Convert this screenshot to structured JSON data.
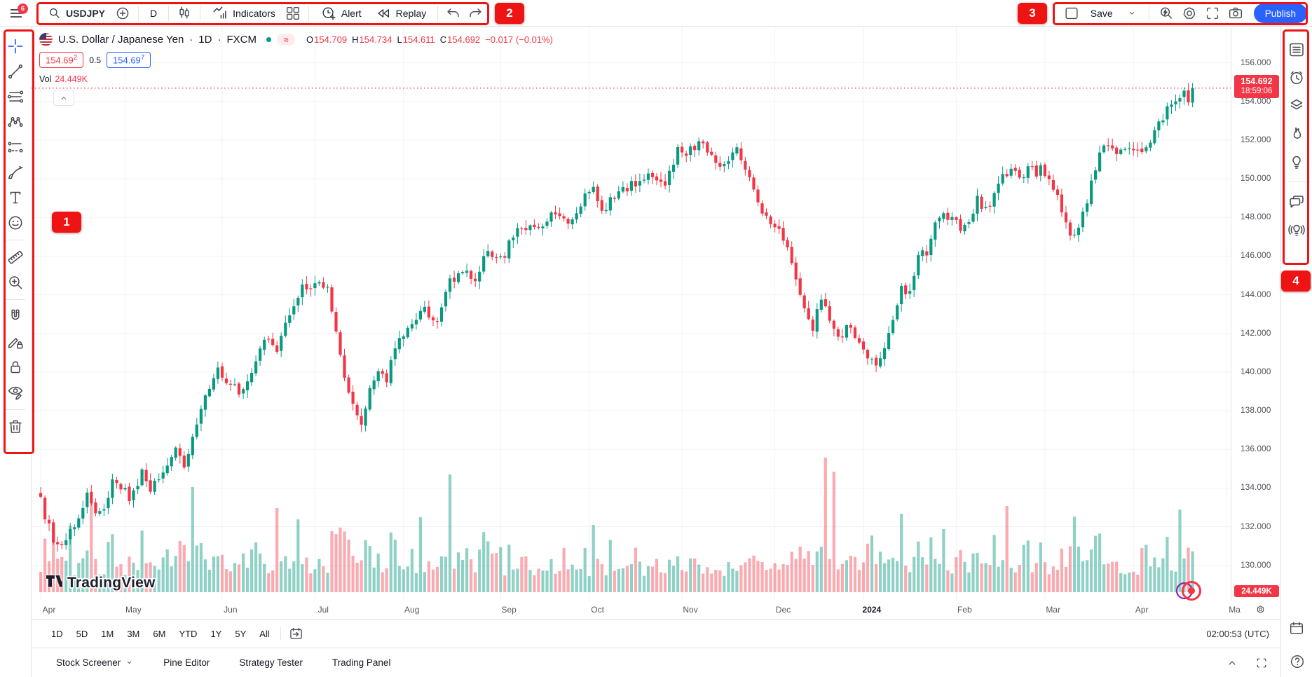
{
  "annotations": {
    "badge1": "1",
    "badge2": "2",
    "badge3": "3",
    "badge4": "4",
    "menu_badge": "6",
    "regions": {
      "1": "left-drawing-toolbar",
      "2": "top-symbol-toolbar",
      "3": "top-right-actions",
      "4": "right-sidebar"
    }
  },
  "topbar": {
    "symbol": "USDJPY",
    "interval": "D",
    "indicators": "Indicators",
    "alert": "Alert",
    "replay": "Replay",
    "save": "Save",
    "publish": "Publish"
  },
  "legend": {
    "title": "U.S. Dollar / Japanese Yen",
    "dot1": "·",
    "interval": "1D",
    "dot2": "·",
    "exchange": "FXCM",
    "approx": "≈",
    "ohlc": [
      {
        "label": "O",
        "value": "154.709"
      },
      {
        "label": "H",
        "value": "154.734"
      },
      {
        "label": "L",
        "value": "154.611"
      },
      {
        "label": "C",
        "value": "154.692"
      }
    ],
    "change": "−0.017 (−0.01%)",
    "sell_price": "154.69",
    "sell_sup": "2",
    "spread": "0.5",
    "buy_price": "154.69",
    "buy_sup": "7",
    "vol_label": "Vol",
    "vol_value": "24.449K"
  },
  "price_scale": {
    "last_price": "154.692",
    "countdown": "18:59:06",
    "volume_badge": "24.449K"
  },
  "time_scale": {
    "clock": "02:00:53 (UTC)"
  },
  "bottom": {
    "ranges": [
      "1D",
      "5D",
      "1M",
      "3M",
      "6M",
      "YTD",
      "1Y",
      "5Y",
      "All"
    ],
    "tabs": [
      "Stock Screener",
      "Pine Editor",
      "Strategy Tester",
      "Trading Panel"
    ]
  },
  "watermark": "TradingView",
  "left_toolbar": {
    "tools": [
      "crosshair-icon",
      "trend-line-icon",
      "fib-retracement-icon",
      "xabcd-pattern-icon",
      "prediction-icon",
      "brush-icon",
      "text-icon",
      "emoji-icon",
      "divider",
      "ruler-icon",
      "zoom-in-icon",
      "divider",
      "magnet-icon",
      "drawing-lock-icon",
      "lock-all-icon",
      "hide-drawings-icon",
      "divider",
      "remove-drawings-icon"
    ]
  },
  "right_sidebar": {
    "tools": [
      "watchlist-icon",
      "alerts-clock-icon",
      "object-tree-icon",
      "hotlists-flame-icon",
      "ideas-bulb-icon",
      "divider",
      "chats-icon",
      "streams-bulb-icon"
    ],
    "bottom_tools": [
      "calendar-icon",
      "help-icon"
    ]
  },
  "chart_data": {
    "type": "candlestick_with_volume",
    "title": "U.S. Dollar / Japanese Yen",
    "symbol": "USDJPY",
    "exchange": "FXCM",
    "interval": "1D",
    "last_bar": {
      "open": 154.709,
      "high": 154.734,
      "low": 154.611,
      "close": 154.692,
      "change": -0.017,
      "change_pct": -0.01,
      "volume": "24.449K"
    },
    "current_price": 154.692,
    "countdown": "18:59:06",
    "num_bars": 274,
    "price_axis": {
      "min": 129.4,
      "max": 156.9,
      "tick_step": 2,
      "tick_labels": [
        "156.000",
        "154.000",
        "152.000",
        "150.000",
        "148.000",
        "146.000",
        "144.000",
        "142.000",
        "140.000",
        "138.000",
        "136.000",
        "134.000",
        "132.000",
        "130.000"
      ]
    },
    "time_axis": {
      "labels": [
        "Apr",
        "May",
        "Jun",
        "Jul",
        "Aug",
        "Sep",
        "Oct",
        "Nov",
        "Dec",
        "2024",
        "Feb",
        "Mar",
        "Apr",
        "Ma"
      ],
      "indices": [
        0,
        20,
        43,
        65,
        86,
        109,
        130,
        152,
        174,
        195,
        217,
        238,
        259,
        281
      ],
      "year_label": "2024"
    },
    "price_keypoints": [
      [
        0,
        133.3
      ],
      [
        2,
        132.0
      ],
      [
        4,
        130.9
      ],
      [
        8,
        132.2
      ],
      [
        11,
        133.5
      ],
      [
        14,
        132.6
      ],
      [
        17,
        134.2
      ],
      [
        19,
        134.0
      ],
      [
        21,
        133.5
      ],
      [
        24,
        134.8
      ],
      [
        26,
        133.8
      ],
      [
        29,
        135.0
      ],
      [
        32,
        136.3
      ],
      [
        34,
        135.0
      ],
      [
        36,
        136.8
      ],
      [
        39,
        138.6
      ],
      [
        42,
        140.4
      ],
      [
        44,
        139.5
      ],
      [
        47,
        139.0
      ],
      [
        50,
        139.9
      ],
      [
        53,
        141.8
      ],
      [
        56,
        141.3
      ],
      [
        59,
        143.0
      ],
      [
        62,
        144.5
      ],
      [
        64,
        144.3
      ],
      [
        66,
        144.7
      ],
      [
        68,
        144.2
      ],
      [
        70,
        142.2
      ],
      [
        72,
        139.8
      ],
      [
        74,
        138.2
      ],
      [
        76,
        137.5
      ],
      [
        78,
        139.1
      ],
      [
        80,
        140.0
      ],
      [
        82,
        139.5
      ],
      [
        84,
        141.2
      ],
      [
        85,
        141.9
      ],
      [
        88,
        142.5
      ],
      [
        91,
        143.3
      ],
      [
        94,
        142.6
      ],
      [
        97,
        144.7
      ],
      [
        100,
        145.3
      ],
      [
        103,
        144.9
      ],
      [
        106,
        146.2
      ],
      [
        108,
        145.9
      ],
      [
        110,
        146.1
      ],
      [
        113,
        147.6
      ],
      [
        116,
        147.4
      ],
      [
        119,
        147.8
      ],
      [
        122,
        148.4
      ],
      [
        125,
        147.6
      ],
      [
        128,
        148.5
      ],
      [
        129,
        149.3
      ],
      [
        131,
        149.7
      ],
      [
        133,
        148.3
      ],
      [
        136,
        149.1
      ],
      [
        139,
        149.6
      ],
      [
        142,
        149.8
      ],
      [
        145,
        150.2
      ],
      [
        148,
        149.8
      ],
      [
        151,
        151.4
      ],
      [
        153,
        151.2
      ],
      [
        155,
        151.7
      ],
      [
        157,
        151.9
      ],
      [
        159,
        151.3
      ],
      [
        161,
        150.4
      ],
      [
        163,
        151.0
      ],
      [
        165,
        151.6
      ],
      [
        167,
        150.7
      ],
      [
        169,
        149.5
      ],
      [
        171,
        148.3
      ],
      [
        173,
        147.9
      ],
      [
        175,
        147.2
      ],
      [
        177,
        146.6
      ],
      [
        179,
        144.6
      ],
      [
        181,
        143.5
      ],
      [
        183,
        142.3
      ],
      [
        185,
        143.8
      ],
      [
        187,
        142.5
      ],
      [
        189,
        141.6
      ],
      [
        191,
        142.4
      ],
      [
        193,
        141.9
      ],
      [
        194,
        141.5
      ],
      [
        196,
        140.9
      ],
      [
        198,
        140.3
      ],
      [
        200,
        141.2
      ],
      [
        202,
        142.6
      ],
      [
        204,
        144.5
      ],
      [
        206,
        144.0
      ],
      [
        208,
        145.8
      ],
      [
        210,
        146.3
      ],
      [
        212,
        147.5
      ],
      [
        214,
        148.2
      ],
      [
        216,
        148.0
      ],
      [
        218,
        147.4
      ],
      [
        220,
        148.0
      ],
      [
        222,
        148.9
      ],
      [
        224,
        148.3
      ],
      [
        226,
        149.3
      ],
      [
        228,
        150.2
      ],
      [
        230,
        150.6
      ],
      [
        232,
        150.1
      ],
      [
        234,
        150.5
      ],
      [
        236,
        150.3
      ],
      [
        237,
        150.6
      ],
      [
        239,
        150.1
      ],
      [
        241,
        149.0
      ],
      [
        243,
        147.6
      ],
      [
        245,
        146.9
      ],
      [
        247,
        148.2
      ],
      [
        249,
        149.8
      ],
      [
        251,
        151.2
      ],
      [
        253,
        151.8
      ],
      [
        255,
        151.3
      ],
      [
        257,
        151.5
      ],
      [
        258,
        151.4
      ],
      [
        260,
        151.7
      ],
      [
        262,
        151.6
      ],
      [
        264,
        152.6
      ],
      [
        266,
        153.2
      ],
      [
        268,
        153.9
      ],
      [
        270,
        154.3
      ],
      [
        271,
        154.35
      ],
      [
        272,
        153.75
      ],
      [
        273,
        154.692
      ]
    ],
    "volume_spikes": [
      [
        24,
        88
      ],
      [
        38,
        70
      ],
      [
        97,
        168
      ],
      [
        131,
        96
      ],
      [
        186,
        192
      ],
      [
        188,
        172
      ],
      [
        214,
        90
      ],
      [
        270,
        118
      ]
    ],
    "colors": {
      "up": "#089981",
      "down": "#f23645",
      "vol_up": "rgba(8,153,129,0.45)",
      "vol_down": "rgba(242,54,69,0.42)",
      "grid": "#f0f2f6",
      "price_line": "#f23645"
    },
    "grid": true,
    "legend_position": "top-left"
  }
}
